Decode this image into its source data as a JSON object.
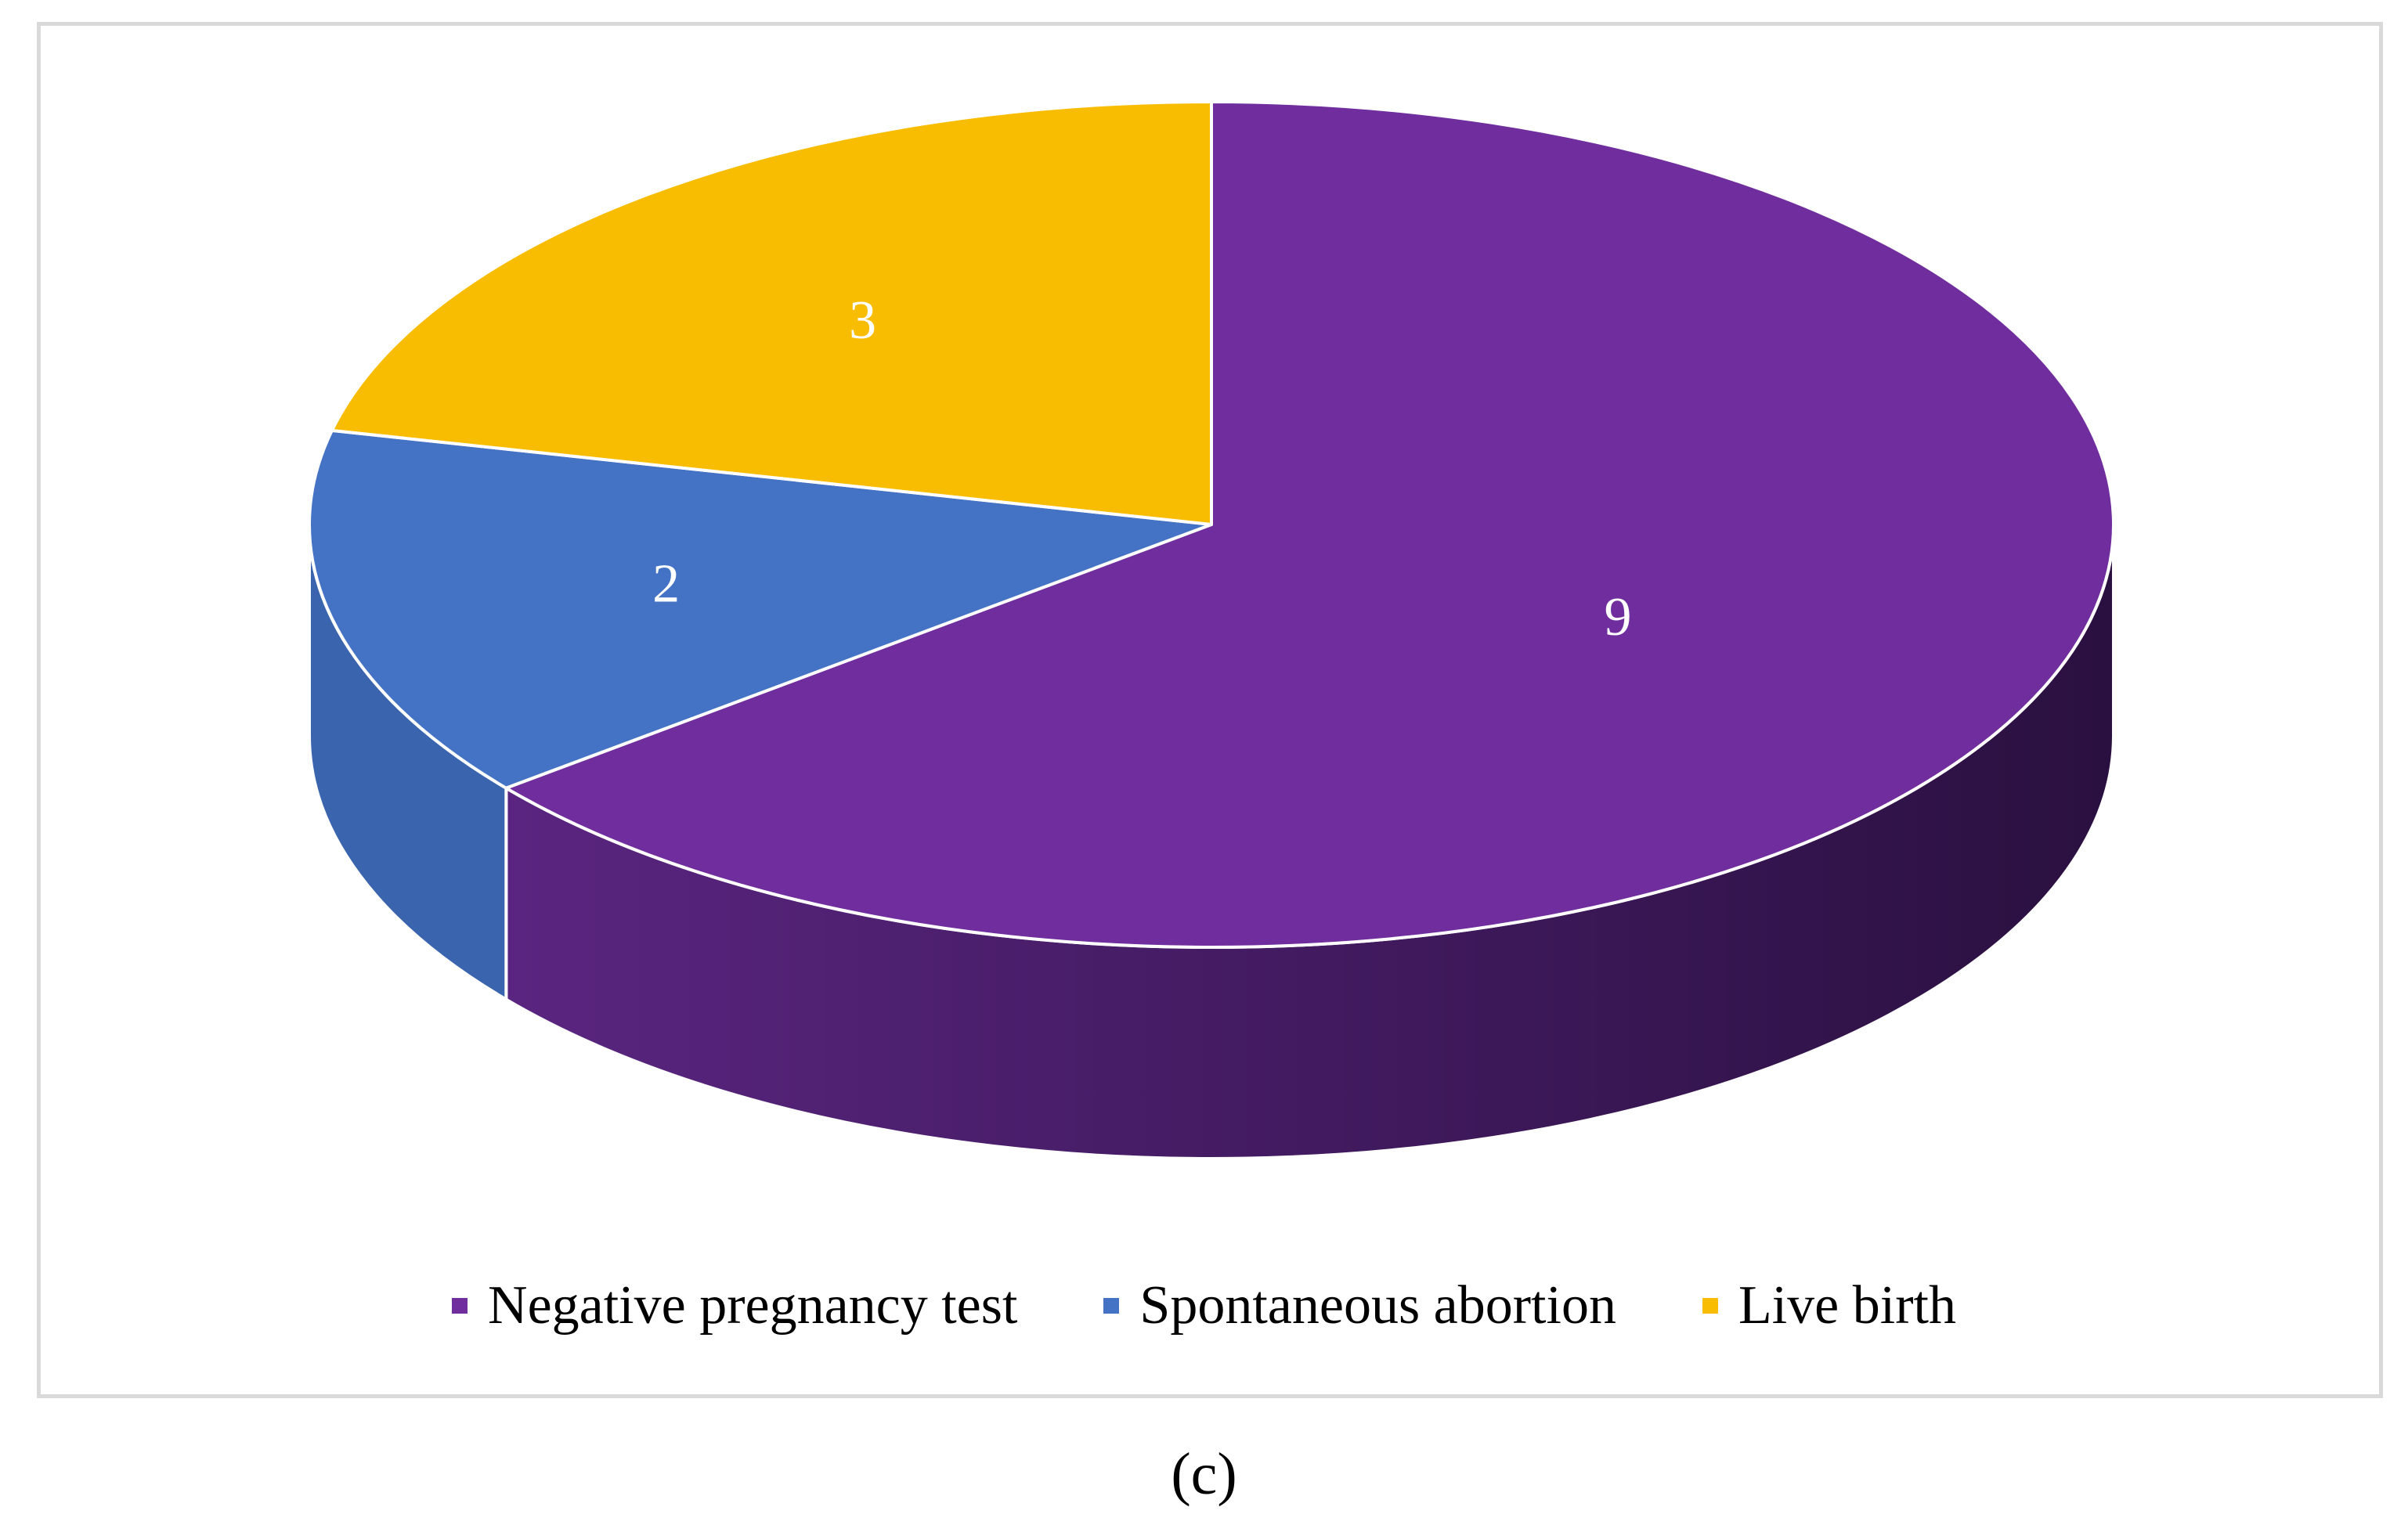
{
  "chart_data": {
    "type": "pie",
    "style": "3d",
    "categories": [
      "Negative pregnancy test",
      "Spontaneous abortion",
      "Live birth"
    ],
    "values": [
      9,
      2,
      3
    ],
    "data_labels": [
      "9",
      "2",
      "3"
    ],
    "colors": [
      "#6f2d9d",
      "#4472c4",
      "#f8bd00"
    ],
    "side_colors": [
      [
        "#5a2580",
        "#2a1040"
      ],
      [
        "#3a64ad",
        "#3a64ad"
      ],
      [
        "#c99a00",
        "#c99a00"
      ]
    ],
    "legend_position": "bottom",
    "title": ""
  },
  "caption": "(c)"
}
